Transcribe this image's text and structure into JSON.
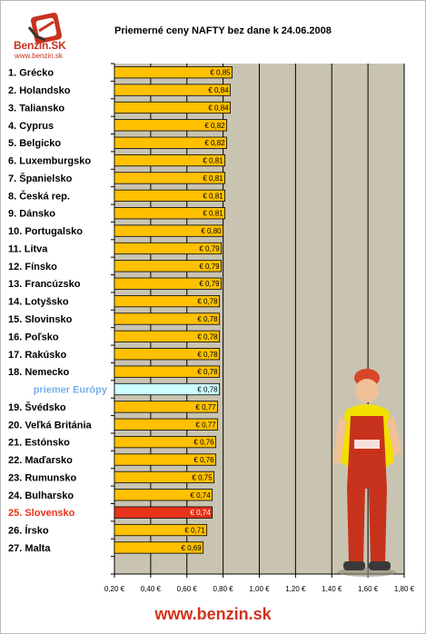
{
  "header": {
    "logo_text": "Benzin.SK",
    "logo_url": "www.benzin.sk",
    "title": "Priemerné ceny NAFTY bez dane k 24.06.2008"
  },
  "footer": {
    "url": "www.benzin.sk"
  },
  "colors": {
    "plot_bg": "#c9c4b2",
    "bar": "#ffc000",
    "bar_average": "#ccffff",
    "bar_slovakia": "#e8331a",
    "label_average": "#7ab0e8",
    "label_slovakia": "#e8331a"
  },
  "chart_data": {
    "type": "bar",
    "orientation": "horizontal",
    "title": "Priemerné ceny NAFTY bez dane k 24.06.2008",
    "categories": [
      "1. Grécko",
      "2. Holandsko",
      "3. Taliansko",
      "4. Cyprus",
      "5. Belgicko",
      "6. Luxemburgsko",
      "7. Španielsko",
      "8. Česká rep.",
      "9. Dánsko",
      "10. Portugalsko",
      "11. Litva",
      "12. Fínsko",
      "13. Francúzsko",
      "14. Lotyšsko",
      "15. Slovinsko",
      "16. Poľsko",
      "17. Rakúsko",
      "18. Nemecko",
      "priemer Európy",
      "19. Švédsko",
      "20. Veľká Británia",
      "21. Estónsko",
      "22. Maďarsko",
      "23. Rumunsko",
      "24. Bulharsko",
      "25. Slovensko",
      "26. Írsko",
      "27. Malta"
    ],
    "values": [
      0.85,
      0.84,
      0.84,
      0.82,
      0.82,
      0.81,
      0.81,
      0.81,
      0.81,
      0.8,
      0.79,
      0.79,
      0.79,
      0.78,
      0.78,
      0.78,
      0.78,
      0.78,
      0.78,
      0.77,
      0.77,
      0.76,
      0.76,
      0.75,
      0.74,
      0.74,
      0.71,
      0.69
    ],
    "value_labels": [
      "€ 0,85",
      "€ 0,84",
      "€ 0,84",
      "€ 0,82",
      "€ 0,82",
      "€ 0,81",
      "€ 0,81",
      "€ 0,81",
      "€ 0,81",
      "€ 0,80",
      "€ 0,79",
      "€ 0,79",
      "€ 0,79",
      "€ 0,78",
      "€ 0,78",
      "€ 0,78",
      "€ 0,78",
      "€ 0,78",
      "€ 0,78",
      "€ 0,77",
      "€ 0,77",
      "€ 0,76",
      "€ 0,76",
      "€ 0,75",
      "€ 0,74",
      "€ 0,74",
      "€ 0,71",
      "€ 0,69"
    ],
    "highlight": {
      "average_index": 18,
      "slovakia_index": 25
    },
    "xlim": [
      0.2,
      1.8
    ],
    "xticks": [
      0.2,
      0.4,
      0.6,
      0.8,
      1.0,
      1.2,
      1.4,
      1.6,
      1.8
    ],
    "xtick_labels": [
      "0,20 €",
      "0,40 €",
      "0,60 €",
      "0,80 €",
      "1,00 €",
      "1,20 €",
      "1,40 €",
      "1,60 €",
      "1,80 €"
    ],
    "xlabel": "",
    "ylabel": "",
    "grid": "vertical",
    "legend": "none"
  }
}
